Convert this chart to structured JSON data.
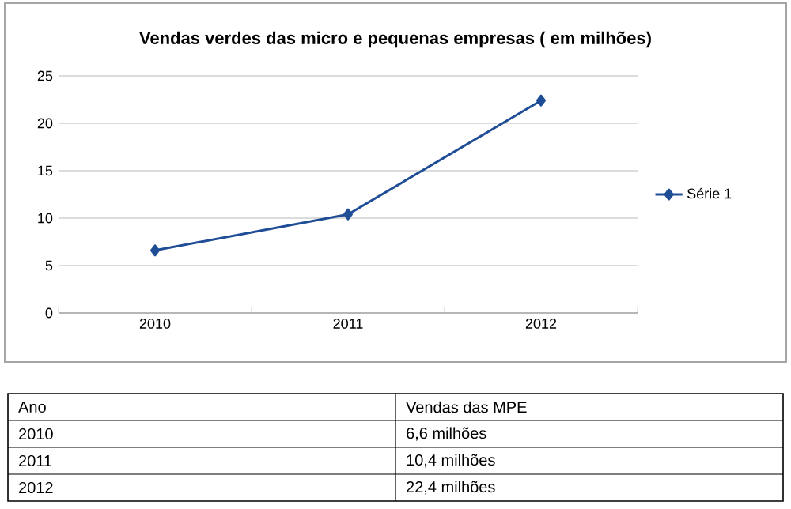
{
  "chart_data": {
    "type": "line",
    "title": "Vendas verdes das micro e pequenas empresas ( em milhões)",
    "categories": [
      "2010",
      "2011",
      "2012"
    ],
    "series": [
      {
        "name": "Série 1",
        "color": "#1f4e96",
        "values": [
          6.6,
          10.4,
          22.4
        ]
      }
    ],
    "ylim": [
      0,
      25
    ],
    "yticks": [
      0,
      5,
      10,
      15,
      20,
      25
    ],
    "grid": "y",
    "legend": "right",
    "marker": "diamond",
    "line_style": "solid",
    "annotations": [
      "Ano",
      "Vendas das MPE",
      "6,6 milhões",
      "10,4 milhões",
      "22,4 milhões"
    ]
  }
}
